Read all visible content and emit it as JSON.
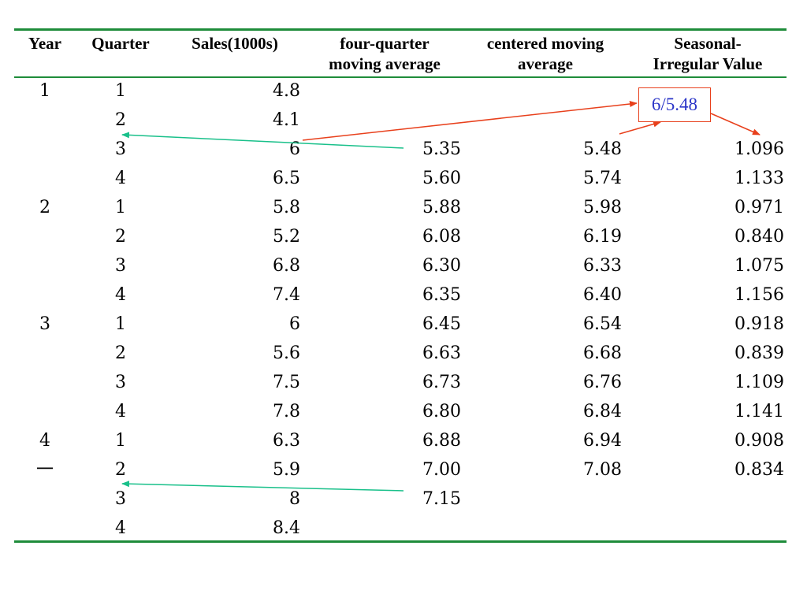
{
  "headers": {
    "year": "Year",
    "quarter": "Quarter",
    "sales": "Sales(1000s)",
    "four_quarter_line1": "four-quarter",
    "four_quarter_line2": "moving average",
    "centered_line1": "centered moving",
    "centered_line2": "average",
    "seasonal_line1": "Seasonal-",
    "seasonal_line2": "Irregular Value"
  },
  "rows": [
    {
      "year": "1",
      "quarter": "1",
      "sales": "4.8",
      "ma": "",
      "cma": "",
      "si": ""
    },
    {
      "year": "",
      "quarter": "2",
      "sales": "4.1",
      "ma": "",
      "cma": "",
      "si": ""
    },
    {
      "year": "",
      "quarter": "3",
      "sales": "6",
      "ma": "5.35",
      "cma": "5.48",
      "si": "1.096"
    },
    {
      "year": "",
      "quarter": "4",
      "sales": "6.5",
      "ma": "5.60",
      "cma": "5.74",
      "si": "1.133"
    },
    {
      "year": "2",
      "quarter": "1",
      "sales": "5.8",
      "ma": "5.88",
      "cma": "5.98",
      "si": "0.971"
    },
    {
      "year": "",
      "quarter": "2",
      "sales": "5.2",
      "ma": "6.08",
      "cma": "6.19",
      "si": "0.840"
    },
    {
      "year": "",
      "quarter": "3",
      "sales": "6.8",
      "ma": "6.30",
      "cma": "6.33",
      "si": "1.075"
    },
    {
      "year": "",
      "quarter": "4",
      "sales": "7.4",
      "ma": "6.35",
      "cma": "6.40",
      "si": "1.156"
    },
    {
      "year": "3",
      "quarter": "1",
      "sales": "6",
      "ma": "6.45",
      "cma": "6.54",
      "si": "0.918"
    },
    {
      "year": "",
      "quarter": "2",
      "sales": "5.6",
      "ma": "6.63",
      "cma": "6.68",
      "si": "0.839"
    },
    {
      "year": "",
      "quarter": "3",
      "sales": "7.5",
      "ma": "6.73",
      "cma": "6.76",
      "si": "1.109"
    },
    {
      "year": "",
      "quarter": "4",
      "sales": "7.8",
      "ma": "6.80",
      "cma": "6.84",
      "si": "1.141"
    },
    {
      "year": "4",
      "quarter": "1",
      "sales": "6.3",
      "ma": "6.88",
      "cma": "6.94",
      "si": "0.908"
    },
    {
      "year": "一",
      "quarter": "2",
      "sales": "5.9",
      "ma": "7.00",
      "cma": "7.08",
      "si": "0.834"
    },
    {
      "year": "",
      "quarter": "3",
      "sales": "8",
      "ma": "7.15",
      "cma": "",
      "si": ""
    },
    {
      "year": "",
      "quarter": "4",
      "sales": "8.4",
      "ma": "",
      "cma": "",
      "si": ""
    }
  ],
  "callout": "6/5.48",
  "colors": {
    "rule": "#1e8c3a",
    "callout_border": "#e8401c",
    "callout_text": "#2b35c8",
    "green_arrow": "#19c08a"
  }
}
